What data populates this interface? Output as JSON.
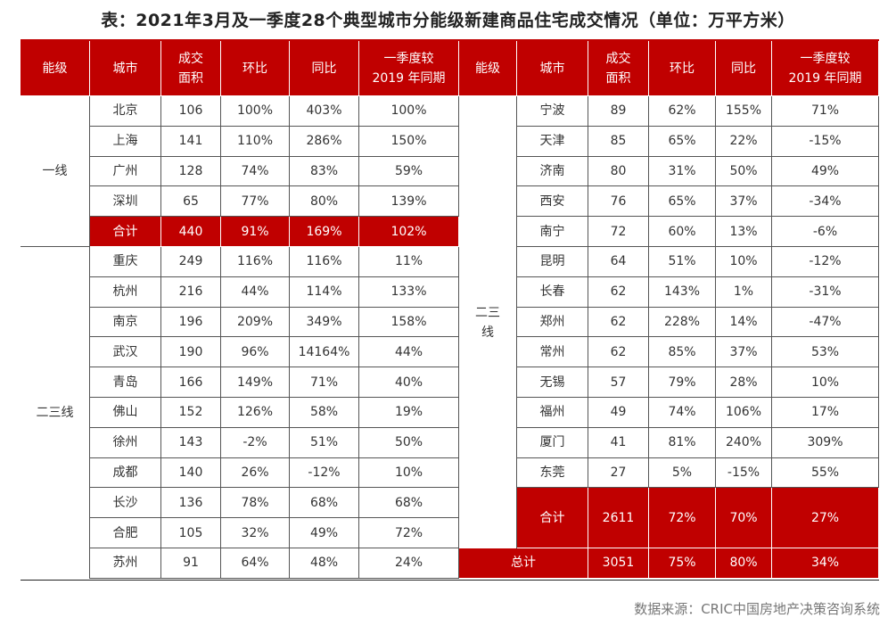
{
  "title": "表：2021年3月及一季度28个典型城市分能级新建商品住宅成交情况（单位：万平方米）",
  "headers": [
    "能级",
    "城市",
    "成交\n面积",
    "环比",
    "同比",
    "一季度较\n2019 年同期"
  ],
  "left": {
    "tier1": "一线",
    "tier1_rows": [
      [
        "北京",
        "106",
        "100%",
        "403%",
        "100%"
      ],
      [
        "上海",
        "141",
        "110%",
        "286%",
        "150%"
      ],
      [
        "广州",
        "128",
        "74%",
        "83%",
        "59%"
      ],
      [
        "深圳",
        "65",
        "77%",
        "80%",
        "139%"
      ]
    ],
    "tier1_total": [
      "合计",
      "440",
      "91%",
      "169%",
      "102%"
    ],
    "tier23": "二三线",
    "tier23_rows": [
      [
        "重庆",
        "249",
        "116%",
        "116%",
        "11%"
      ],
      [
        "杭州",
        "216",
        "44%",
        "114%",
        "133%"
      ],
      [
        "南京",
        "196",
        "209%",
        "349%",
        "158%"
      ],
      [
        "武汉",
        "190",
        "96%",
        "14164%",
        "44%"
      ],
      [
        "青岛",
        "166",
        "149%",
        "71%",
        "40%"
      ],
      [
        "佛山",
        "152",
        "126%",
        "58%",
        "19%"
      ],
      [
        "徐州",
        "143",
        "-2%",
        "51%",
        "50%"
      ],
      [
        "成都",
        "140",
        "26%",
        "-12%",
        "10%"
      ],
      [
        "长沙",
        "136",
        "78%",
        "68%",
        "68%"
      ],
      [
        "合肥",
        "105",
        "32%",
        "49%",
        "72%"
      ],
      [
        "苏州",
        "91",
        "64%",
        "48%",
        "24%"
      ]
    ]
  },
  "right": {
    "tier_line1": "二三",
    "tier_line2": "线",
    "rows": [
      [
        "宁波",
        "89",
        "62%",
        "155%",
        "71%"
      ],
      [
        "天津",
        "85",
        "65%",
        "22%",
        "-15%"
      ],
      [
        "济南",
        "80",
        "31%",
        "50%",
        "49%"
      ],
      [
        "西安",
        "76",
        "65%",
        "37%",
        "-34%"
      ],
      [
        "南宁",
        "72",
        "60%",
        "13%",
        "-6%"
      ],
      [
        "昆明",
        "64",
        "51%",
        "10%",
        "-12%"
      ],
      [
        "长春",
        "62",
        "143%",
        "1%",
        "-31%"
      ],
      [
        "郑州",
        "62",
        "228%",
        "14%",
        "-47%"
      ],
      [
        "常州",
        "62",
        "85%",
        "37%",
        "53%"
      ],
      [
        "无锡",
        "57",
        "79%",
        "28%",
        "10%"
      ],
      [
        "福州",
        "49",
        "74%",
        "106%",
        "17%"
      ],
      [
        "厦门",
        "41",
        "81%",
        "240%",
        "309%"
      ],
      [
        "东莞",
        "27",
        "5%",
        "-15%",
        "55%"
      ]
    ],
    "subtotal": [
      "合计",
      "2611",
      "72%",
      "70%",
      "27%"
    ],
    "grand_total": [
      "总计",
      "3051",
      "75%",
      "80%",
      "34%"
    ]
  },
  "source": "数据来源：CRIC中国房地产决策咨询系统",
  "colors": {
    "header_bg": "#c00000",
    "header_text": "#ffffff"
  }
}
